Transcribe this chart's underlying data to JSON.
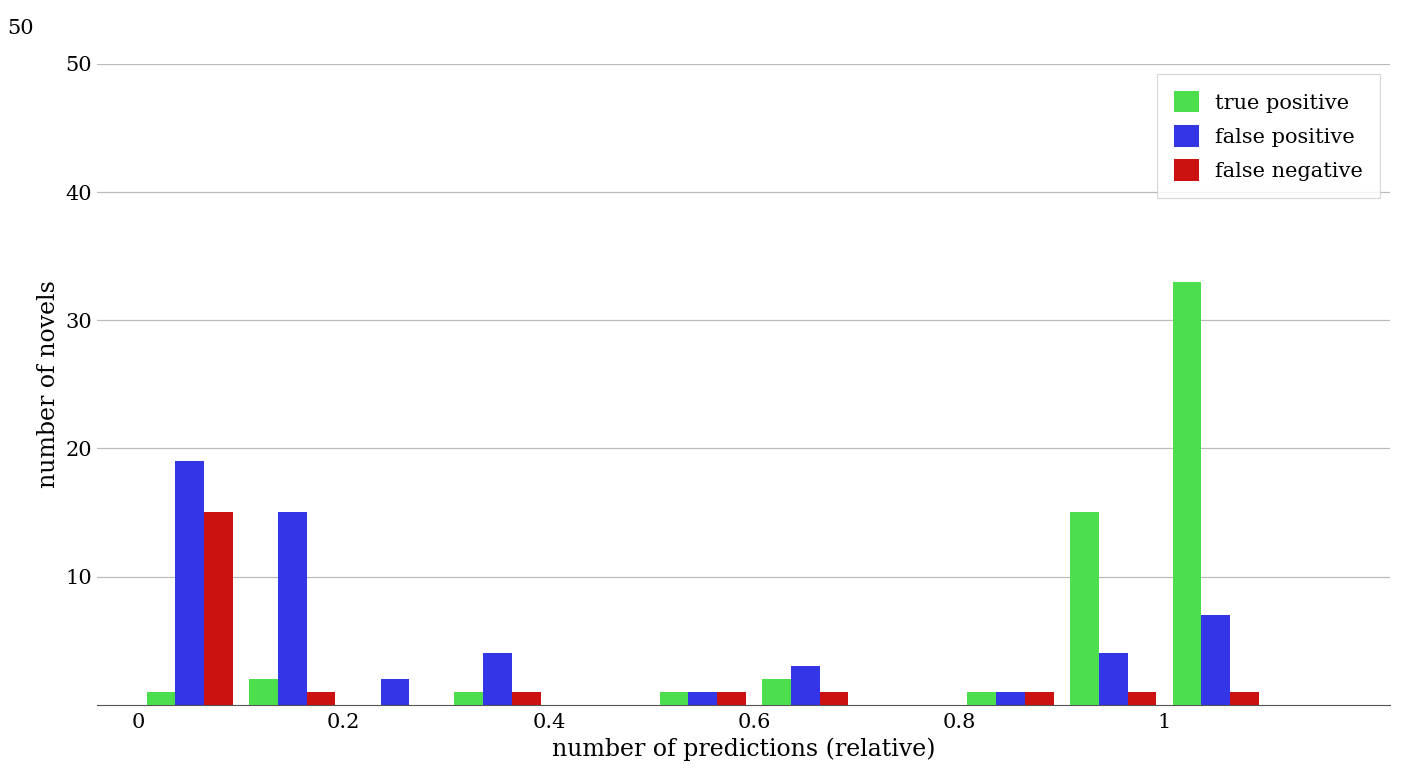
{
  "xlabel": "number of predictions (relative)",
  "ylabel": "number of novels",
  "ylim": [
    0,
    50
  ],
  "yticks": [
    10,
    20,
    30,
    40,
    50
  ],
  "ytick_top": 50,
  "background_color": "#ffffff",
  "grid_color": "#bbbbbb",
  "bar_width": 0.028,
  "bin_centers": [
    0.05,
    0.15,
    0.25,
    0.35,
    0.45,
    0.55,
    0.65,
    0.75,
    0.85,
    0.95,
    1.05,
    1.15
  ],
  "true_positive": [
    1,
    2,
    0,
    1,
    0,
    1,
    2,
    0,
    1,
    15,
    33,
    0
  ],
  "false_positive": [
    19,
    15,
    2,
    4,
    0,
    1,
    3,
    0,
    1,
    4,
    7,
    0
  ],
  "false_negative": [
    15,
    1,
    0,
    1,
    0,
    1,
    1,
    0,
    1,
    1,
    1,
    0
  ],
  "colors": {
    "true_positive": "#4dde4d",
    "false_positive": "#3535e8",
    "false_negative": "#cc1111"
  },
  "legend_labels": [
    "true positive",
    "false positive",
    "false negative"
  ],
  "legend_fontsize": 15,
  "axis_fontsize": 17,
  "tick_fontsize": 15,
  "xlim": [
    -0.04,
    1.22
  ],
  "xticks": [
    0,
    0.2,
    0.4,
    0.6,
    0.8,
    1.0
  ],
  "xtick_labels": [
    "0",
    "0.2",
    "0.4",
    "0.6",
    "0.8",
    "1"
  ]
}
